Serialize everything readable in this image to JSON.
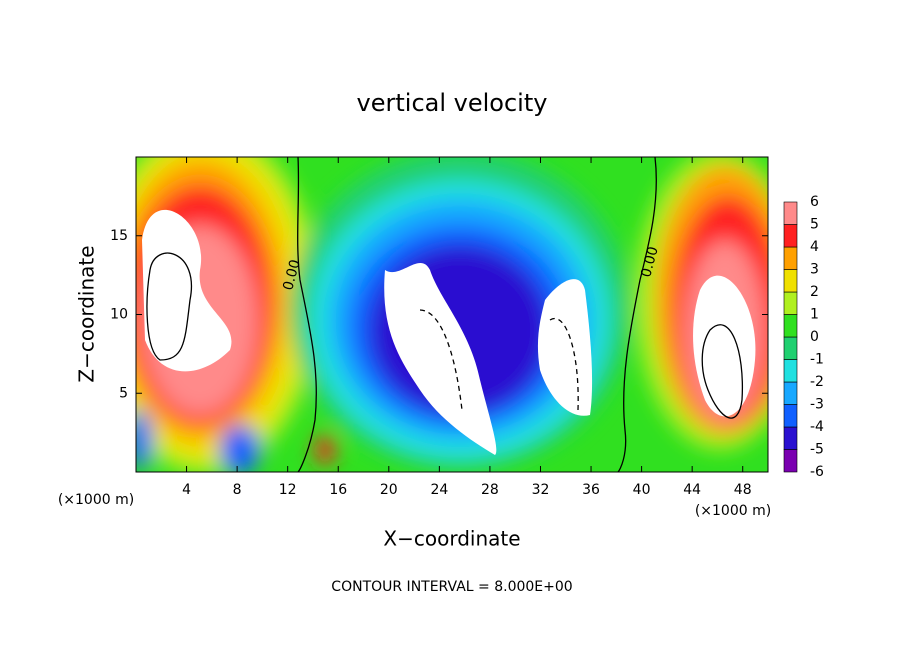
{
  "chart_data": {
    "type": "contour",
    "title": "vertical velocity",
    "xlabel": "X−coordinate",
    "ylabel": "Z−coordinate",
    "x_unit": "(×1000 m)",
    "xlim": [
      0,
      50
    ],
    "xticks": [
      4,
      8,
      12,
      16,
      20,
      24,
      28,
      32,
      36,
      40,
      44,
      48
    ],
    "ylim": [
      0,
      20
    ],
    "yticks": [
      5,
      10,
      15
    ],
    "colorbar": {
      "ticks": [
        -6,
        -5,
        -4,
        -3,
        -2,
        -1,
        0,
        1,
        2,
        3,
        4,
        5,
        6
      ],
      "colors": [
        "#7a00b0",
        "#2a10d0",
        "#1060ff",
        "#18a8ff",
        "#20e0e0",
        "#20d070",
        "#30e020",
        "#b0f020",
        "#f0e000",
        "#ffa000",
        "#ff2020",
        "#ff8a8a"
      ]
    },
    "contour_labels": [
      "0.00",
      "0.00"
    ],
    "footnote": "CONTOUR INTERVAL = 8.000E+00"
  }
}
